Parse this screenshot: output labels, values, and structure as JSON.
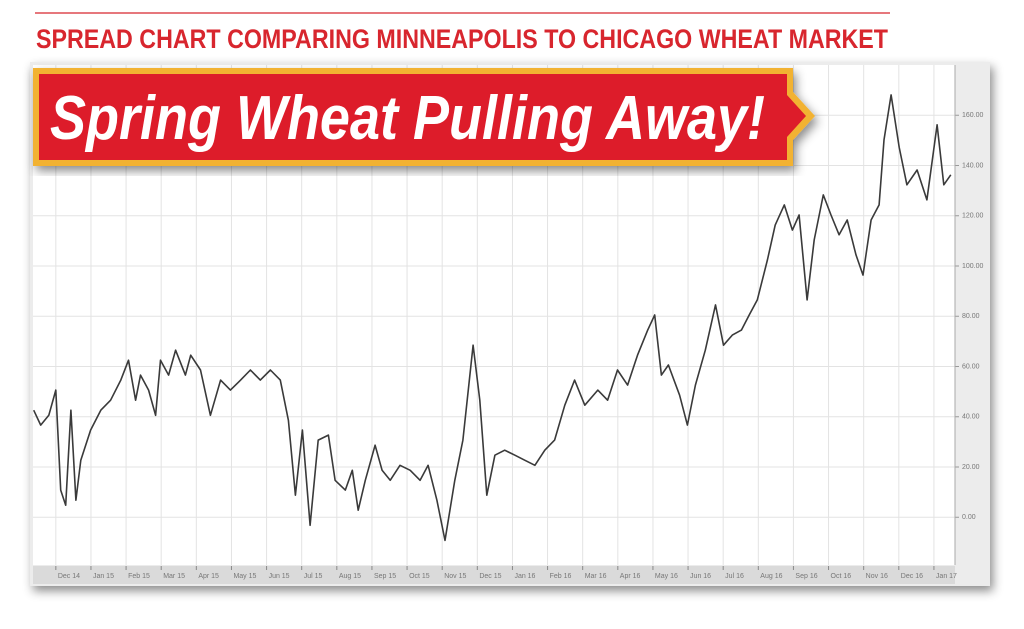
{
  "chart_data": {
    "type": "line",
    "title": "Spring Wheat Pulling Away!",
    "subtitle": "SPREAD CHART COMPARING MINNEAPOLIS TO CHICAGO WHEAT MARKET",
    "x": [
      -0.63,
      -0.43,
      -0.2,
      0,
      0.14,
      0.28,
      0.43,
      0.57,
      0.71,
      0.99,
      1.28,
      1.56,
      1.85,
      2.07,
      2.27,
      2.41,
      2.64,
      2.84,
      2.98,
      3.21,
      3.41,
      3.69,
      3.84,
      4.12,
      4.4,
      4.69,
      4.97,
      5.26,
      5.54,
      5.82,
      6.11,
      6.39,
      6.62,
      6.82,
      7.02,
      7.24,
      7.47,
      7.76,
      7.95,
      8.24,
      8.44,
      8.61,
      8.81,
      9.09,
      9.29,
      9.52,
      9.8,
      10.09,
      10.37,
      10.6,
      10.85,
      11.08,
      11.36,
      11.59,
      11.88,
      12.07,
      12.27,
      12.5,
      12.78,
      13.07,
      13.35,
      13.64,
      13.92,
      14.2,
      14.49,
      14.77,
      15.06,
      15.43,
      15.71,
      15.99,
      16.28,
      16.56,
      16.85,
      17.05,
      17.24,
      17.44,
      17.76,
      17.98,
      18.21,
      18.49,
      18.78,
      19.01,
      19.26,
      19.52,
      19.74,
      19.97,
      20.26,
      20.48,
      20.74,
      20.97,
      21.16,
      21.39,
      21.59,
      21.85,
      22.07,
      22.3,
      22.53,
      22.78,
      22.98,
      23.21,
      23.44,
      23.58,
      23.78,
      24.01,
      24.23,
      24.52,
      24.8,
      25.09,
      25.28,
      25.48
    ],
    "values": [
      42.6,
      36.7,
      40.6,
      50.6,
      10.8,
      4.8,
      42.6,
      6.8,
      22.7,
      34.7,
      42.6,
      46.6,
      54.6,
      62.5,
      46.6,
      56.6,
      50.6,
      40.6,
      62.5,
      56.6,
      66.5,
      56.6,
      64.5,
      58.6,
      40.6,
      54.6,
      50.6,
      54.6,
      58.6,
      54.6,
      58.6,
      54.6,
      38.6,
      8.8,
      34.7,
      -3.2,
      30.7,
      32.7,
      14.7,
      10.8,
      18.7,
      2.8,
      14.7,
      28.7,
      18.7,
      14.7,
      20.7,
      18.7,
      14.7,
      20.7,
      6.8,
      -9.2,
      14.7,
      30.7,
      68.5,
      46.6,
      8.8,
      24.7,
      26.7,
      24.7,
      22.7,
      20.7,
      26.7,
      30.7,
      44.6,
      54.6,
      44.6,
      50.6,
      46.6,
      58.6,
      52.6,
      64.5,
      74.5,
      80.5,
      56.6,
      60.6,
      48.6,
      36.7,
      52.6,
      66.5,
      84.5,
      68.5,
      72.5,
      74.5,
      80.5,
      86.5,
      102.4,
      116.3,
      124.3,
      114.3,
      120.3,
      86.5,
      110.4,
      128.3,
      120.3,
      112.4,
      118.3,
      104.4,
      96.4,
      118.3,
      124.3,
      150.2,
      168.1,
      147.2,
      132.3,
      138.2,
      126.3,
      156.2,
      132.3,
      136.3
    ],
    "color": "#3a3a3a",
    "xlim": [
      -0.65,
      25.6
    ],
    "ylim": [
      -19,
      180
    ],
    "xticks": [
      {
        "value": 0,
        "label": "Dec 14"
      },
      {
        "value": 1,
        "label": "Jan 15"
      },
      {
        "value": 2,
        "label": "Feb 15"
      },
      {
        "value": 3,
        "label": "Mar 15"
      },
      {
        "value": 4,
        "label": "Apr 15"
      },
      {
        "value": 5,
        "label": "May 15"
      },
      {
        "value": 6,
        "label": "Jun 15"
      },
      {
        "value": 7,
        "label": "Jul 15"
      },
      {
        "value": 8,
        "label": "Aug 15"
      },
      {
        "value": 9,
        "label": "Sep 15"
      },
      {
        "value": 10,
        "label": "Oct 15"
      },
      {
        "value": 11,
        "label": "Nov 15"
      },
      {
        "value": 12,
        "label": "Dec 15"
      },
      {
        "value": 13,
        "label": "Jan 16"
      },
      {
        "value": 14,
        "label": "Feb 16"
      },
      {
        "value": 15,
        "label": "Mar 16"
      },
      {
        "value": 16,
        "label": "Apr 16"
      },
      {
        "value": 17,
        "label": "May 16"
      },
      {
        "value": 18,
        "label": "Jun 16"
      },
      {
        "value": 19,
        "label": "Jul 16"
      },
      {
        "value": 20,
        "label": "Aug 16"
      },
      {
        "value": 21,
        "label": "Sep 16"
      },
      {
        "value": 22,
        "label": "Oct 16"
      },
      {
        "value": 23,
        "label": "Nov 16"
      },
      {
        "value": 24,
        "label": "Dec 16"
      },
      {
        "value": 25,
        "label": "Jan 17"
      }
    ],
    "yticks": [
      {
        "value": 0,
        "label": "0.00"
      },
      {
        "value": 20,
        "label": "20.00"
      },
      {
        "value": 40,
        "label": "40.00"
      },
      {
        "value": 60,
        "label": "60.00"
      },
      {
        "value": 80,
        "label": "80.00"
      },
      {
        "value": 100,
        "label": "100.00"
      },
      {
        "value": 120,
        "label": "120.00"
      },
      {
        "value": 140,
        "label": "140.00"
      },
      {
        "value": 160,
        "label": "160.00"
      }
    ],
    "grid": true
  }
}
